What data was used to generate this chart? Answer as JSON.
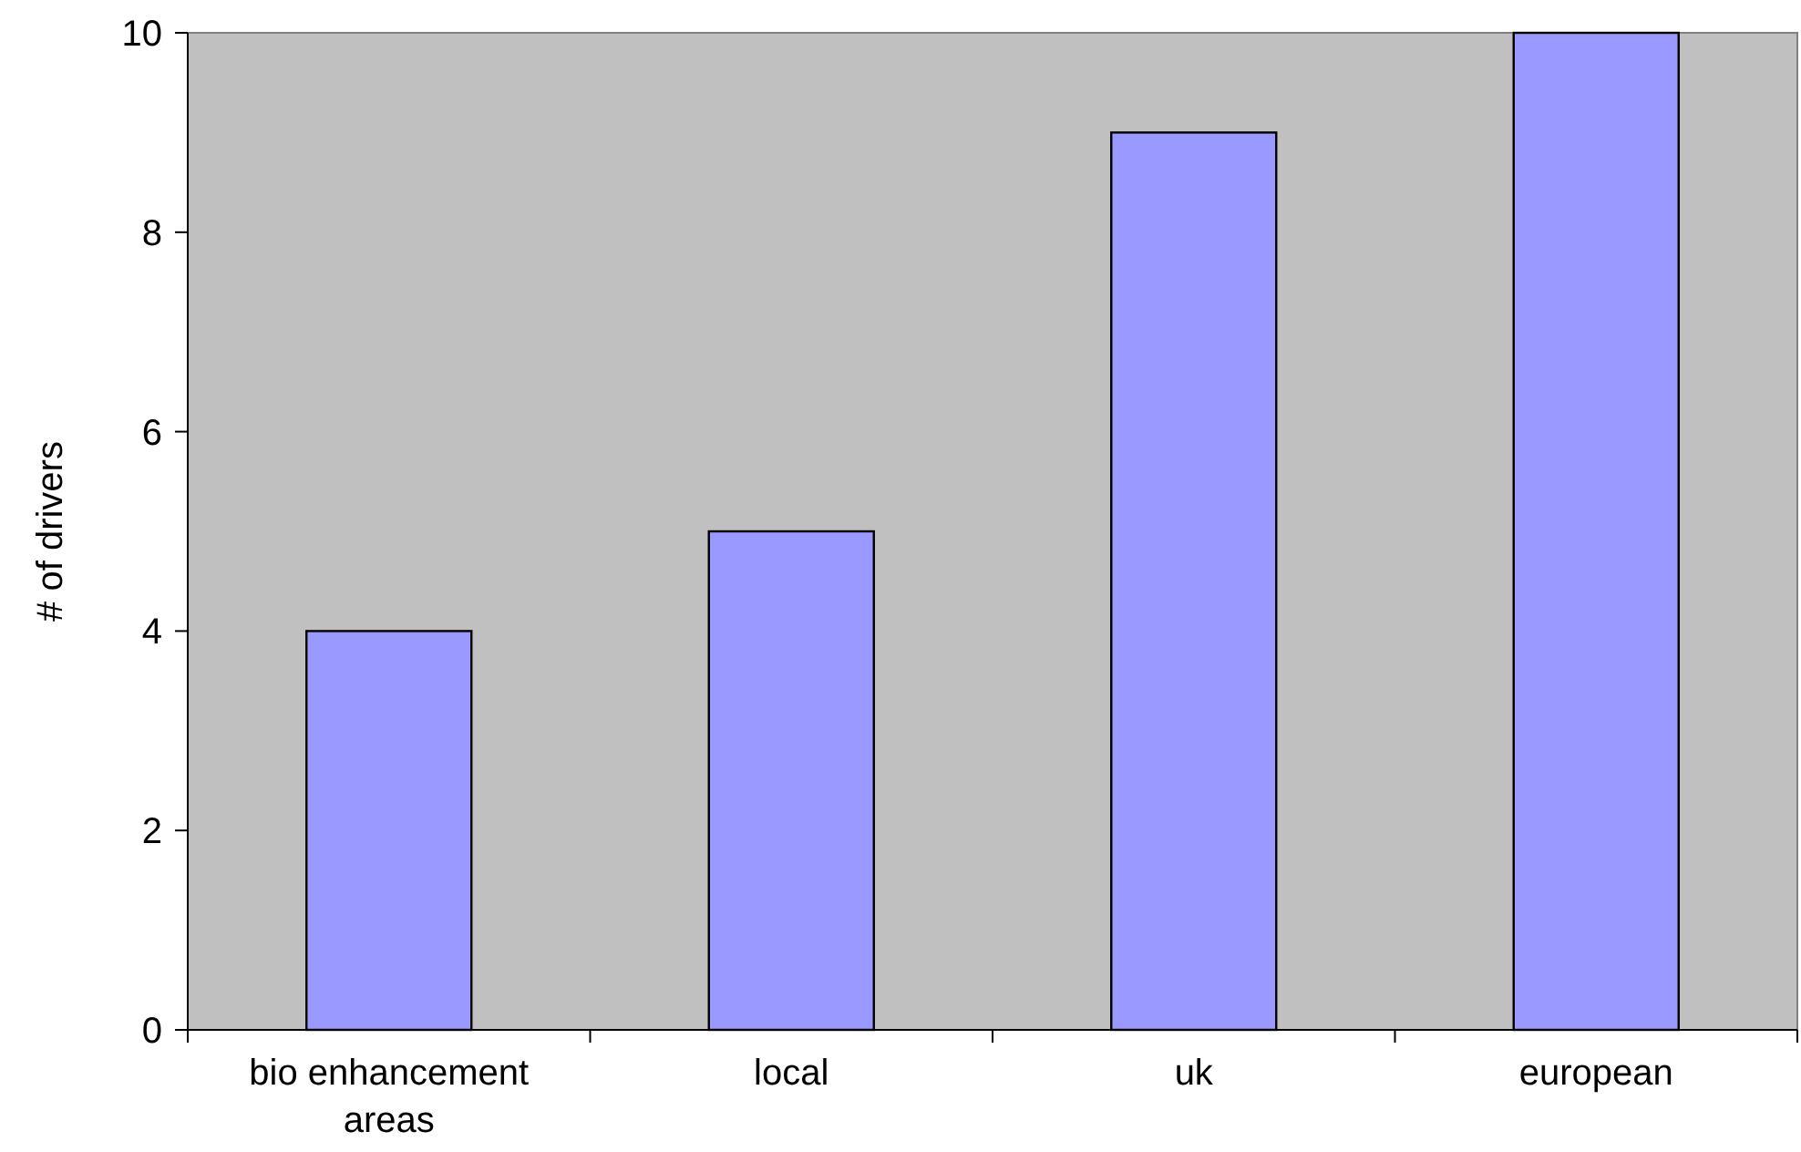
{
  "chart_data": {
    "type": "bar",
    "ylabel": "# of drivers",
    "categories": [
      "bio enhancement areas",
      "local",
      "uk",
      "european"
    ],
    "values": [
      4,
      5,
      9,
      10
    ],
    "color": "#9999ff",
    "ylim": [
      0,
      10
    ],
    "yticks": [
      0,
      2,
      4,
      6,
      8,
      10
    ],
    "grid": false
  }
}
